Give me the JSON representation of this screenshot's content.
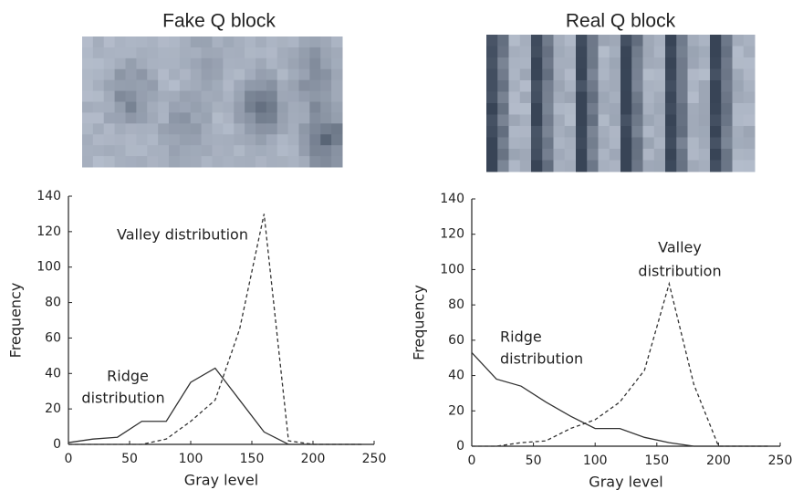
{
  "chart_data": [
    {
      "type": "line",
      "title": "Fake Q block",
      "xlabel": "Gray level",
      "ylabel": "Frequency",
      "x": [
        0,
        20,
        40,
        60,
        80,
        100,
        120,
        140,
        160,
        180,
        200,
        220,
        240
      ],
      "series": [
        {
          "style": "solid",
          "color": "#333333",
          "values": [
            1,
            3,
            4,
            13,
            13,
            35,
            43,
            25,
            7,
            0,
            0,
            0,
            0
          ]
        },
        {
          "style": "dashed",
          "color": "#333333",
          "values": [
            0,
            0,
            0,
            0,
            3,
            13,
            25,
            65,
            130,
            2,
            0,
            0,
            0
          ]
        }
      ],
      "annotations": [
        [
          "Valley distribution"
        ],
        [
          "Ridge",
          "distribution"
        ]
      ],
      "xlim": [
        0,
        250
      ],
      "xticks": [
        0,
        50,
        100,
        150,
        200,
        250
      ],
      "ylim": [
        0,
        140
      ],
      "yticks": [
        0,
        20,
        40,
        60,
        80,
        100,
        120,
        140
      ]
    },
    {
      "type": "line",
      "title": "Real Q block",
      "xlabel": "Gray level",
      "ylabel": "Frequency",
      "x": [
        0,
        20,
        40,
        60,
        80,
        100,
        120,
        140,
        160,
        180,
        200,
        220,
        240
      ],
      "series": [
        {
          "style": "solid",
          "color": "#333333",
          "values": [
            53,
            38,
            34,
            25,
            17,
            10,
            10,
            5,
            2,
            0,
            0,
            0,
            0
          ]
        },
        {
          "style": "dashed",
          "color": "#333333",
          "values": [
            0,
            0,
            2,
            3,
            10,
            15,
            25,
            43,
            92,
            35,
            0,
            0,
            0
          ]
        }
      ],
      "annotations": [
        [
          "Valley",
          "distribution"
        ],
        [
          "Ridge",
          "distribution"
        ]
      ],
      "xlim": [
        0,
        250
      ],
      "xticks": [
        0,
        50,
        100,
        150,
        200,
        250
      ],
      "ylim": [
        0,
        140
      ],
      "yticks": [
        0,
        20,
        40,
        60,
        80,
        100,
        120,
        140
      ]
    }
  ]
}
